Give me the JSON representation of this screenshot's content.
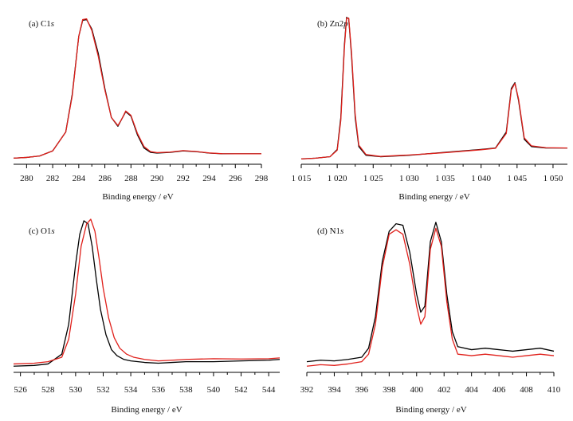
{
  "figure": {
    "panels": [
      {
        "label_prefix": "(a) C1",
        "label_italic": "s"
      },
      {
        "label_prefix": "(b) Zn2",
        "label_italic": "p"
      },
      {
        "label_prefix": "(c) O1",
        "label_italic": "s"
      },
      {
        "label_prefix": "(d) N1",
        "label_italic": "s"
      }
    ]
  },
  "chart_data": [
    {
      "type": "line",
      "panel": "(a)",
      "title": "(a) C1s",
      "xlabel": "Binding energy / eV",
      "ylabel": "",
      "xlim": [
        279,
        298
      ],
      "ylim": [
        0,
        1.0
      ],
      "xticks": [
        "280",
        "282",
        "284",
        "286",
        "288",
        "290",
        "292",
        "294",
        "296",
        "298"
      ],
      "grid": false,
      "series": [
        {
          "color": "#000000",
          "x": [
            279,
            280,
            281,
            282,
            283,
            283.5,
            284,
            284.3,
            284.6,
            285,
            285.5,
            286,
            286.5,
            287,
            287.3,
            287.6,
            288,
            288.5,
            289,
            289.5,
            290,
            291,
            292,
            293,
            294,
            295,
            296,
            297,
            298
          ],
          "y": [
            0.02,
            0.025,
            0.035,
            0.07,
            0.2,
            0.46,
            0.86,
            0.97,
            0.975,
            0.91,
            0.74,
            0.5,
            0.3,
            0.24,
            0.29,
            0.34,
            0.31,
            0.18,
            0.09,
            0.06,
            0.055,
            0.06,
            0.07,
            0.065,
            0.055,
            0.05,
            0.05,
            0.05,
            0.05
          ]
        },
        {
          "color": "#e0201b",
          "x": [
            279,
            280,
            281,
            282,
            283,
            283.5,
            284,
            284.3,
            284.6,
            285,
            285.5,
            286,
            286.5,
            287,
            287.3,
            287.6,
            288,
            288.5,
            289,
            289.5,
            290,
            291,
            292,
            293,
            294,
            295,
            296,
            297,
            298
          ],
          "y": [
            0.02,
            0.025,
            0.035,
            0.07,
            0.2,
            0.45,
            0.86,
            0.975,
            0.98,
            0.9,
            0.72,
            0.49,
            0.3,
            0.245,
            0.29,
            0.345,
            0.315,
            0.19,
            0.1,
            0.065,
            0.058,
            0.062,
            0.072,
            0.066,
            0.056,
            0.051,
            0.05,
            0.05,
            0.05
          ]
        }
      ]
    },
    {
      "type": "line",
      "panel": "(b)",
      "title": "(b) Zn2p",
      "xlabel": "Binding energy / eV",
      "ylabel": "",
      "xlim": [
        1015,
        1052
      ],
      "ylim": [
        0,
        1.0
      ],
      "xticks": [
        "1 015",
        "1 020",
        "1 025",
        "1 030",
        "1 035",
        "1 040",
        "1 045",
        "1 050"
      ],
      "grid": false,
      "series": [
        {
          "color": "#000000",
          "x": [
            1015,
            1017,
            1019,
            1020,
            1020.5,
            1021,
            1021.3,
            1021.6,
            1022,
            1022.5,
            1023,
            1024,
            1026,
            1030,
            1035,
            1040,
            1042,
            1043.5,
            1044.2,
            1044.7,
            1045.2,
            1046,
            1047,
            1049,
            1052
          ],
          "y": [
            0.015,
            0.02,
            0.03,
            0.08,
            0.3,
            0.8,
            0.99,
            0.98,
            0.72,
            0.3,
            0.1,
            0.04,
            0.03,
            0.04,
            0.06,
            0.08,
            0.09,
            0.2,
            0.5,
            0.54,
            0.42,
            0.15,
            0.1,
            0.09,
            0.09
          ]
        },
        {
          "color": "#e0201b",
          "x": [
            1015,
            1017,
            1019,
            1020,
            1020.5,
            1021,
            1021.3,
            1021.6,
            1022,
            1022.5,
            1023,
            1024,
            1026,
            1030,
            1035,
            1040,
            1042,
            1043.5,
            1044.2,
            1044.7,
            1045.2,
            1046,
            1047,
            1049,
            1052
          ],
          "y": [
            0.015,
            0.02,
            0.03,
            0.075,
            0.28,
            0.78,
            0.985,
            0.985,
            0.74,
            0.32,
            0.11,
            0.045,
            0.032,
            0.042,
            0.058,
            0.078,
            0.088,
            0.19,
            0.49,
            0.535,
            0.43,
            0.16,
            0.105,
            0.092,
            0.09
          ]
        }
      ]
    },
    {
      "type": "line",
      "panel": "(c)",
      "title": "(c) O1s",
      "xlabel": "Binding energy / eV",
      "ylabel": "",
      "xlim": [
        525.5,
        544.8
      ],
      "ylim": [
        0,
        1.0
      ],
      "xticks": [
        "526",
        "528",
        "530",
        "532",
        "534",
        "536",
        "538",
        "540",
        "542",
        "544"
      ],
      "grid": false,
      "series": [
        {
          "color": "#000000",
          "x": [
            525.5,
            527,
            528,
            529,
            529.5,
            530,
            530.3,
            530.6,
            530.9,
            531.2,
            531.5,
            531.8,
            532.2,
            532.6,
            533,
            533.5,
            534,
            535,
            536,
            537,
            538,
            540,
            542,
            544,
            544.8
          ],
          "y": [
            0.02,
            0.025,
            0.035,
            0.1,
            0.3,
            0.7,
            0.9,
            0.99,
            0.97,
            0.82,
            0.6,
            0.4,
            0.23,
            0.13,
            0.09,
            0.065,
            0.055,
            0.045,
            0.04,
            0.045,
            0.05,
            0.05,
            0.055,
            0.06,
            0.065
          ]
        },
        {
          "color": "#e0201b",
          "x": [
            525.5,
            527,
            528,
            529,
            529.5,
            530,
            530.4,
            530.8,
            531.1,
            531.4,
            531.7,
            532,
            532.4,
            532.8,
            533.2,
            533.7,
            534.2,
            535,
            536,
            537,
            538,
            540,
            542,
            544,
            544.8
          ],
          "y": [
            0.035,
            0.04,
            0.05,
            0.08,
            0.2,
            0.5,
            0.82,
            0.97,
            1.0,
            0.92,
            0.74,
            0.54,
            0.34,
            0.21,
            0.14,
            0.1,
            0.08,
            0.065,
            0.055,
            0.06,
            0.065,
            0.07,
            0.068,
            0.07,
            0.075
          ]
        }
      ]
    },
    {
      "type": "line",
      "panel": "(d)",
      "title": "(d) N1s",
      "xlabel": "Binding energy / eV",
      "ylabel": "",
      "xlim": [
        392,
        410
      ],
      "ylim": [
        0,
        1.0
      ],
      "xticks": [
        "392",
        "394",
        "396",
        "398",
        "400",
        "402",
        "404",
        "406",
        "408",
        "410"
      ],
      "grid": false,
      "series": [
        {
          "color": "#000000",
          "x": [
            392,
            393,
            394,
            395,
            396,
            396.5,
            397,
            397.5,
            398,
            398.5,
            399,
            399.5,
            400,
            400.3,
            400.6,
            401,
            401.4,
            401.8,
            402.2,
            402.6,
            403,
            404,
            405,
            406,
            407,
            408,
            409,
            410
          ],
          "y": [
            0.05,
            0.06,
            0.055,
            0.065,
            0.08,
            0.14,
            0.35,
            0.72,
            0.92,
            0.97,
            0.96,
            0.78,
            0.5,
            0.38,
            0.42,
            0.85,
            0.98,
            0.85,
            0.5,
            0.25,
            0.15,
            0.13,
            0.14,
            0.13,
            0.12,
            0.13,
            0.14,
            0.12
          ]
        },
        {
          "color": "#e0201b",
          "x": [
            392,
            393,
            394,
            395,
            396,
            396.5,
            397,
            397.5,
            398,
            398.5,
            399,
            399.5,
            400,
            400.3,
            400.6,
            401,
            401.4,
            401.8,
            402.2,
            402.6,
            403,
            404,
            405,
            406,
            407,
            408,
            409,
            410
          ],
          "y": [
            0.02,
            0.03,
            0.025,
            0.035,
            0.05,
            0.1,
            0.3,
            0.68,
            0.9,
            0.93,
            0.9,
            0.7,
            0.42,
            0.3,
            0.35,
            0.8,
            0.94,
            0.82,
            0.45,
            0.2,
            0.1,
            0.09,
            0.1,
            0.09,
            0.08,
            0.09,
            0.1,
            0.09
          ]
        }
      ]
    }
  ]
}
